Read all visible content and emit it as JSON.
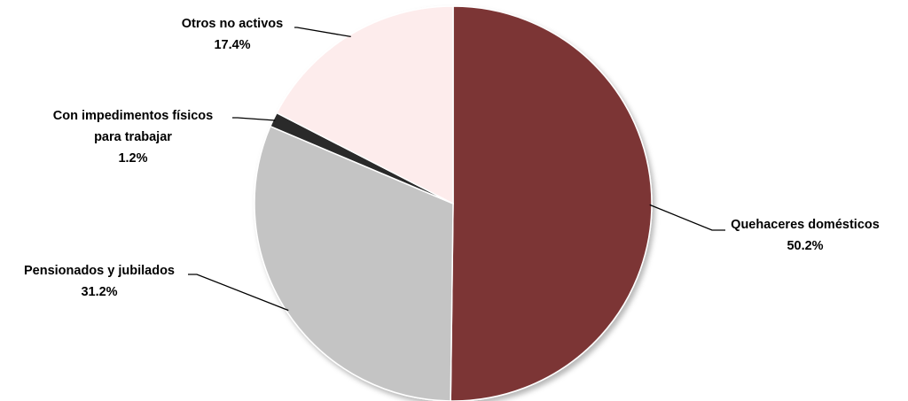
{
  "chart_data": {
    "type": "pie",
    "title": "",
    "start_angle_deg": 0,
    "direction": "clockwise",
    "slices": [
      {
        "name": "Quehaceres domésticos",
        "value": 50.2,
        "label": "50.2%",
        "color": "#7b3535"
      },
      {
        "name": "Pensionados y jubilados",
        "value": 31.2,
        "label": "31.2%",
        "color": "#c4c4c4"
      },
      {
        "name": "Con impedimentos físicos para trabajar",
        "name_lines": [
          "Con impedimentos físicos",
          "para trabajar"
        ],
        "value": 1.2,
        "label": "1.2%",
        "color": "#2a2a2a"
      },
      {
        "name": "Otros no activos",
        "value": 17.4,
        "label": "17.4%",
        "color": "#fdecec"
      }
    ]
  }
}
